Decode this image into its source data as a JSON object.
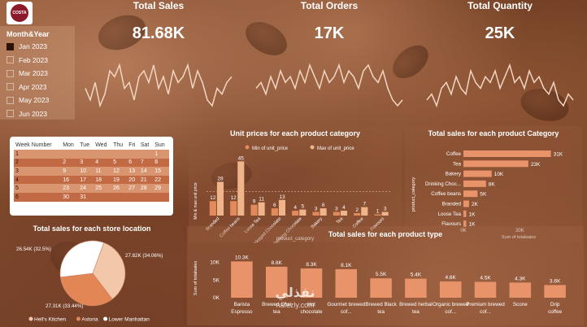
{
  "kpis": {
    "total_sales": {
      "title": "Total Sales",
      "value": "81.68K"
    },
    "total_orders": {
      "title": "Total Orders",
      "value": "17K"
    },
    "total_quantity": {
      "title": "Total Quantity",
      "value": "25K"
    }
  },
  "slicer": {
    "label": "Month&Year",
    "items": [
      {
        "label": "Jan 2023",
        "checked": true
      },
      {
        "label": "Feb 2023",
        "checked": false
      },
      {
        "label": "Mar 2023",
        "checked": false
      },
      {
        "label": "Apr 2023",
        "checked": false
      },
      {
        "label": "May 2023",
        "checked": false
      },
      {
        "label": "Jun 2023",
        "checked": false
      }
    ]
  },
  "calendar": {
    "headers": [
      "Week Number",
      "Mon",
      "Tue",
      "Wed",
      "Thu",
      "Fri",
      "Sat",
      "Sun"
    ],
    "rows": [
      [
        "1",
        "",
        "",
        "",
        "",
        "",
        "",
        "1"
      ],
      [
        "2",
        "2",
        "3",
        "4",
        "5",
        "6",
        "7",
        "8"
      ],
      [
        "3",
        "9",
        "10",
        "11",
        "12",
        "13",
        "14",
        "15"
      ],
      [
        "4",
        "16",
        "17",
        "18",
        "19",
        "20",
        "21",
        "22"
      ],
      [
        "5",
        "23",
        "24",
        "25",
        "26",
        "27",
        "28",
        "29"
      ],
      [
        "6",
        "30",
        "31",
        "",
        "",
        "",
        "",
        ""
      ]
    ]
  },
  "chart_data": [
    {
      "type": "bar",
      "title": "Unit prices for each product category",
      "xlabel": "product_category",
      "ylabel": "Min & max unit price",
      "series": [
        {
          "name": "Min of unit_price",
          "values": [
            12,
            12,
            9,
            6,
            4,
            3,
            3,
            2,
            1
          ]
        },
        {
          "name": "Max of unit_price",
          "values": [
            28,
            45,
            11,
            13,
            5,
            6,
            4,
            7,
            3
          ]
        }
      ],
      "categories": [
        "Branded",
        "Coffee beans",
        "Loose Tea",
        "Packaged Chocolate",
        "Drinking Chocolate",
        "Bakery",
        "Tea",
        "Coffee",
        "Flavours"
      ],
      "colors": {
        "min": "#e38a5c",
        "max": "#f0b48a"
      }
    },
    {
      "type": "bar",
      "orientation": "horizontal",
      "title": "Total sales for each product Category",
      "xlabel": "Sum of totalsales",
      "ylabel": "product_category",
      "categories": [
        "Coffee",
        "Tea",
        "Bakery",
        "Drinking Choc...",
        "Coffee beans",
        "Branded",
        "Loose Tea",
        "Flavours"
      ],
      "values": [
        31,
        23,
        10,
        8,
        5,
        2,
        1,
        1
      ],
      "data_labels": [
        "31K",
        "23K",
        "10K",
        "8K",
        "5K",
        "2K",
        "1K",
        "1K"
      ],
      "xticks": [
        "0K",
        "20K"
      ],
      "xlim": [
        0,
        34
      ]
    },
    {
      "type": "pie",
      "title": "Total sales for each store location",
      "slices": [
        {
          "name": "Hell's Kitchen",
          "value": 27.82,
          "label": "27.82K (34.06%)",
          "color": "#f2c7aa"
        },
        {
          "name": "Astoria",
          "value": 27.31,
          "label": "27.31K (33.44%)",
          "color": "#e28655"
        },
        {
          "name": "Lower Manhattan",
          "value": 26.54,
          "label": "26.54K (32.5%)",
          "color": "#ffffff"
        }
      ]
    },
    {
      "type": "bar",
      "title": "Total sales for each product type",
      "ylabel": "Sum of totalsales",
      "categories": [
        "Barista Espresso",
        "Brewed Chai tea",
        "Hot chocolate",
        "Gourmet brewed cof...",
        "Brewed Black tea",
        "Brewed herbal tea",
        "Organic brewed cof...",
        "Premium brewed cof...",
        "Scone",
        "Drip coffee"
      ],
      "values": [
        10.3,
        8.8,
        8.3,
        8.1,
        5.5,
        5.4,
        4.6,
        4.5,
        4.3,
        3.6
      ],
      "data_labels": [
        "10.3K",
        "8.8K",
        "8.3K",
        "8.1K",
        "5.5K",
        "5.4K",
        "4.6K",
        "4.5K",
        "4.3K",
        "3.6K"
      ],
      "yticks": [
        "0K",
        "5K",
        "10K"
      ],
      "ylim": [
        0,
        12
      ]
    },
    {
      "type": "line",
      "series": [
        {
          "values": [
            5,
            3,
            6,
            2,
            4,
            8,
            7,
            9,
            5,
            6,
            3,
            7,
            8,
            6,
            9,
            5,
            7,
            4,
            8,
            6,
            7,
            9,
            5,
            8,
            6,
            3,
            2,
            5,
            4,
            6,
            7
          ]
        },
        {
          "values": [
            5,
            6,
            4,
            7,
            5,
            8,
            6,
            7,
            5,
            8,
            6,
            9,
            7,
            5,
            8,
            6,
            7,
            9,
            6,
            8,
            7,
            5,
            8,
            9,
            7,
            6,
            8,
            5,
            3,
            2,
            3
          ]
        },
        {
          "values": [
            4,
            5,
            3,
            6,
            7,
            5,
            8,
            6,
            5,
            9,
            7,
            6,
            8,
            7,
            9,
            6,
            8,
            10,
            7,
            8,
            6,
            9,
            7,
            8,
            6,
            5,
            7,
            4,
            3,
            5,
            4
          ]
        }
      ]
    }
  ],
  "logo": {
    "text": "COSTA"
  },
  "pie_legend": [
    "Hell's Kitchen",
    "Astoria",
    "Lower Manhattan"
  ],
  "pie_legend_colors": [
    "#f2c7aa",
    "#e28655",
    "#ffffff"
  ],
  "watermark": {
    "arabic": "نفذلي",
    "latin": "nafezly.com"
  }
}
